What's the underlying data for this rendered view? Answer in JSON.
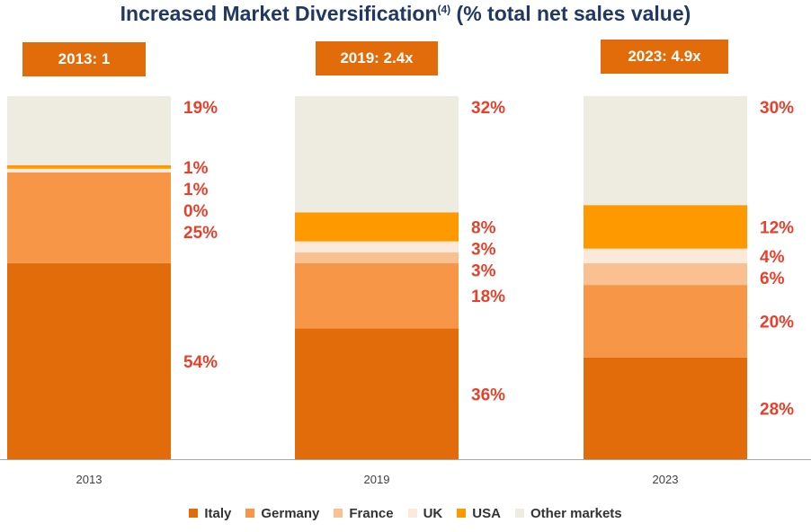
{
  "title": {
    "main": "Increased Market Diversification",
    "sup": "(4)",
    "suffix": " (% total net sales value)"
  },
  "badges": [
    "2013: 1",
    "2019: 2.4x",
    "2023: 4.9x"
  ],
  "colors": {
    "Italy": "#e36c0a",
    "Germany": "#f79646",
    "France": "#fac090",
    "UK": "#fde9d9",
    "USA": "#ff9900",
    "Other markets": "#eeece1",
    "label": "#e8412b",
    "badge": "#e36c0a",
    "axis": "#a6a6a6"
  },
  "chart_data": {
    "type": "bar",
    "stacked": true,
    "normalized": true,
    "categories": [
      "2013",
      "2019",
      "2023"
    ],
    "series": [
      {
        "name": "Italy",
        "values": [
          54,
          36,
          28
        ]
      },
      {
        "name": "Germany",
        "values": [
          25,
          18,
          20
        ]
      },
      {
        "name": "France",
        "values": [
          0,
          3,
          6
        ]
      },
      {
        "name": "UK",
        "values": [
          1,
          3,
          4
        ]
      },
      {
        "name": "USA",
        "values": [
          1,
          8,
          12
        ]
      },
      {
        "name": "Other markets",
        "values": [
          19,
          32,
          30
        ]
      }
    ],
    "data_labels": [
      [
        "54%",
        "25%",
        "0%",
        "1%",
        "1%",
        "19%"
      ],
      [
        "36%",
        "18%",
        "3%",
        "3%",
        "8%",
        "32%"
      ],
      [
        "28%",
        "20%",
        "6%",
        "4%",
        "12%",
        "30%"
      ]
    ],
    "legend_position": "bottom",
    "grid": false
  }
}
